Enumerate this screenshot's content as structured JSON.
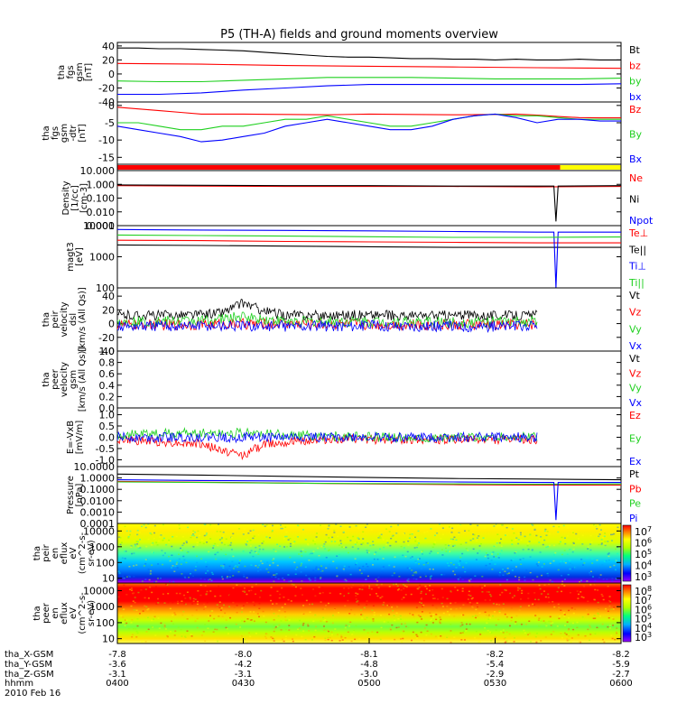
{
  "title": "P5 (TH-A) fields and ground moments overview",
  "colors": {
    "black": "#000000",
    "red": "#ff0000",
    "green": "#1fd01f",
    "blue": "#0000ff",
    "yellow": "#ffff00"
  },
  "chart_data": {
    "type": "line",
    "x_axis": {
      "ticks": [
        "0400",
        "0430",
        "0500",
        "0530",
        "0600"
      ],
      "rows": [
        {
          "label": "tha_X-GSM",
          "values": [
            "-7.8",
            "-8.0",
            "-8.1",
            "-8.2",
            "-8.2"
          ]
        },
        {
          "label": "tha_Y-GSM",
          "values": [
            "-3.6",
            "-4.2",
            "-4.8",
            "-5.4",
            "-5.9"
          ]
        },
        {
          "label": "tha_Z-GSM",
          "values": [
            "-3.1",
            "-3.1",
            "-3.0",
            "-2.9",
            "-2.7"
          ]
        },
        {
          "label": "hhmm",
          "values": []
        }
      ],
      "date": "2010 Feb 16"
    },
    "panels": [
      {
        "id": "fgs-gsm",
        "ylabel": [
          "tha",
          "fgs",
          "gsm",
          "[nT]"
        ],
        "yticks": [
          "40",
          "20",
          "0",
          "-20",
          "-40"
        ],
        "scale": "linear",
        "ylim": [
          -40,
          45
        ],
        "series": [
          {
            "name": "Bt",
            "color": "black",
            "x": [
              0,
              5,
              10,
              15,
              20,
              25,
              30,
              35,
              40,
              45,
              50,
              55,
              60,
              65,
              70,
              75,
              80,
              85,
              90,
              95,
              100,
              105,
              110,
              115,
              120
            ],
            "y": [
              37,
              37,
              36,
              36,
              35,
              34,
              33,
              31,
              29,
              27,
              25,
              24,
              24,
              23,
              22,
              22,
              21,
              21,
              20,
              21,
              20,
              20,
              21,
              20,
              20
            ]
          },
          {
            "name": "bz",
            "color": "red",
            "x": [
              0,
              20,
              40,
              60,
              80,
              100,
              120
            ],
            "y": [
              15,
              14,
              12,
              11,
              10,
              9,
              8
            ]
          },
          {
            "name": "by",
            "color": "green",
            "x": [
              0,
              10,
              20,
              30,
              40,
              50,
              60,
              70,
              80,
              90,
              100,
              110,
              120
            ],
            "y": [
              -10,
              -11,
              -11,
              -9,
              -7,
              -5,
              -5,
              -5,
              -6,
              -7,
              -7,
              -7,
              -6
            ]
          },
          {
            "name": "bx",
            "color": "blue",
            "x": [
              0,
              10,
              20,
              30,
              40,
              50,
              60,
              70,
              80,
              90,
              100,
              110,
              120
            ],
            "y": [
              -29,
              -29,
              -27,
              -23,
              -20,
              -17,
              -15,
              -15,
              -15,
              -15,
              -15,
              -15,
              -14
            ]
          }
        ]
      },
      {
        "id": "fgs-gsm-detrended",
        "ylabel": [
          "tha",
          "fgs",
          "gsm",
          "-dtr",
          "[nT]"
        ],
        "yticks": [
          "0",
          "-5",
          "-10",
          "-15"
        ],
        "scale": "linear",
        "ylim": [
          -17,
          1
        ],
        "series": [
          {
            "name": "Bz",
            "color": "red",
            "x": [
              0,
              5,
              10,
              15,
              20,
              25,
              30,
              40,
              50,
              60,
              70,
              80,
              90,
              95,
              100,
              105,
              110,
              115,
              120
            ],
            "y": [
              -0.5,
              -1,
              -1.5,
              -2,
              -2.5,
              -2.5,
              -2.5,
              -2.6,
              -2.7,
              -2.5,
              -2.6,
              -2.7,
              -2.6,
              -2.5,
              -2.8,
              -3.2,
              -3.5,
              -3.6,
              -3.6
            ]
          },
          {
            "name": "By",
            "color": "green",
            "x": [
              0,
              5,
              10,
              15,
              20,
              25,
              30,
              35,
              40,
              45,
              50,
              55,
              60,
              65,
              70,
              75,
              80,
              85,
              90,
              95,
              100,
              105,
              110,
              115,
              120
            ],
            "y": [
              -5,
              -5,
              -6,
              -7,
              -7,
              -6,
              -6,
              -5,
              -4,
              -4,
              -3,
              -4,
              -5,
              -6,
              -6,
              -5,
              -4,
              -3,
              -2.5,
              -3,
              -3,
              -3.5,
              -4,
              -4,
              -4
            ]
          },
          {
            "name": "Bx",
            "color": "blue",
            "x": [
              0,
              5,
              10,
              15,
              20,
              25,
              30,
              35,
              40,
              45,
              50,
              55,
              60,
              65,
              70,
              75,
              80,
              85,
              90,
              95,
              100,
              105,
              110,
              115,
              120
            ],
            "y": [
              -6,
              -7,
              -8,
              -9,
              -10.5,
              -10,
              -9,
              -8,
              -6,
              -5,
              -4,
              -5,
              -6,
              -7,
              -7,
              -6,
              -4,
              -3,
              -2.5,
              -3.5,
              -5,
              -4,
              -4,
              -4.5,
              -4.5
            ]
          }
        ]
      },
      {
        "id": "mode-bar",
        "type": "bar-strip",
        "segments": [
          {
            "x0": 0,
            "x1": 105.5,
            "color": "red"
          },
          {
            "x0": 105.5,
            "x1": 120,
            "color": "yellow"
          }
        ]
      },
      {
        "id": "density",
        "ylabel": [
          "Density",
          "[1/cc]",
          "[cm-3]"
        ],
        "yticks": [
          "10.000",
          "1.000",
          "0.100",
          "0.010",
          "0.001"
        ],
        "scale": "log",
        "ylim": [
          0.001,
          10
        ],
        "series": [
          {
            "name": "Ne",
            "color": "red",
            "x": [
              0,
              20,
              40,
              60,
              80,
              100,
              120
            ],
            "y": [
              0.8,
              0.75,
              0.7,
              0.7,
              0.7,
              0.65,
              0.7
            ]
          },
          {
            "name": "Ni",
            "color": "black",
            "x": [
              0,
              20,
              40,
              60,
              80,
              100,
              104,
              104.5,
              105,
              120
            ],
            "y": [
              0.9,
              0.85,
              0.8,
              0.8,
              0.75,
              0.75,
              0.75,
              0.002,
              0.75,
              0.8
            ]
          },
          {
            "name": "Npot",
            "color": "blue",
            "x": [],
            "y": []
          }
        ]
      },
      {
        "id": "temperature",
        "ylabel": [
          "magt3",
          "[eV]"
        ],
        "yticks": [
          "10000",
          "1000",
          "100"
        ],
        "scale": "log",
        "ylim": [
          100,
          10000
        ],
        "series": [
          {
            "name": "Te⊥",
            "color": "red",
            "x": [
              0,
              20,
              40,
              60,
              80,
              100,
              120
            ],
            "y": [
              3400,
              3300,
              3100,
              3000,
              2900,
              2800,
              2800
            ]
          },
          {
            "name": "Te||",
            "color": "black",
            "x": [
              0,
              20,
              40,
              60,
              80,
              100,
              120
            ],
            "y": [
              2400,
              2300,
              2200,
              2100,
              2000,
              2000,
              2000
            ]
          },
          {
            "name": "Ti⊥",
            "color": "blue",
            "x": [
              0,
              20,
              40,
              60,
              80,
              100,
              104,
              104.5,
              105,
              120
            ],
            "y": [
              7500,
              7200,
              7000,
              6800,
              6500,
              6200,
              6200,
              100,
              6200,
              6200
            ]
          },
          {
            "name": "Ti||",
            "color": "green",
            "x": [
              0,
              20,
              40,
              60,
              80,
              100,
              120
            ],
            "y": [
              5000,
              4800,
              4600,
              4400,
              4200,
              4200,
              4300
            ]
          }
        ]
      },
      {
        "id": "peir-velocity",
        "ylabel": [
          "tha",
          "peir",
          "velocity",
          "dsl",
          "[km/s (All Qs)]"
        ],
        "yticks": [
          "40",
          "20",
          "0",
          "-20",
          "-40"
        ],
        "scale": "linear",
        "ylim": [
          -40,
          52
        ],
        "series": [
          {
            "name": "Vt",
            "color": "black",
            "x": [
              0,
              10,
              20,
              25,
              30,
              35,
              40,
              50,
              60,
              70,
              80,
              90,
              100
            ],
            "y": [
              12,
              12,
              13,
              16,
              30,
              18,
              12,
              12,
              13,
              11,
              12,
              12,
              12
            ]
          },
          {
            "name": "Vz",
            "color": "red",
            "x": [
              0,
              20,
              40,
              60,
              80,
              100
            ],
            "y": [
              -2,
              -1,
              0,
              -1,
              -2,
              -1
            ]
          },
          {
            "name": "Vy",
            "color": "green",
            "x": [
              0,
              20,
              30,
              40,
              60,
              80,
              100
            ],
            "y": [
              3,
              4,
              10,
              3,
              3,
              2,
              3
            ]
          },
          {
            "name": "Vx",
            "color": "blue",
            "x": [
              0,
              20,
              40,
              60,
              80,
              100
            ],
            "y": [
              -4,
              -3,
              -4,
              -3,
              -4,
              -4
            ]
          }
        ]
      },
      {
        "id": "peer-velocity",
        "ylabel": [
          "tha",
          "peer",
          "velocity",
          "gsm",
          "[km/s (All Qs)]"
        ],
        "yticks": [
          "1.0",
          "0.8",
          "0.6",
          "0.4",
          "0.2",
          "0.0"
        ],
        "scale": "linear",
        "ylim": [
          0,
          1
        ],
        "series": [
          {
            "name": "Vt",
            "color": "black",
            "x": [],
            "y": []
          },
          {
            "name": "Vz",
            "color": "red",
            "x": [],
            "y": []
          },
          {
            "name": "Vy",
            "color": "green",
            "x": [],
            "y": []
          },
          {
            "name": "Vx",
            "color": "blue",
            "x": [],
            "y": []
          }
        ]
      },
      {
        "id": "efield",
        "ylabel": [
          "E=-VxB",
          "[mV/m]"
        ],
        "yticks": [
          "1.0",
          "0.5",
          "0.0",
          "-0.5",
          "-1.0"
        ],
        "scale": "linear",
        "ylim": [
          -1.3,
          1.3
        ],
        "series": [
          {
            "name": "Ez",
            "color": "red",
            "x": [
              0,
              10,
              20,
              25,
              30,
              35,
              40,
              50,
              60,
              70,
              80,
              90,
              100
            ],
            "y": [
              -0.1,
              -0.2,
              -0.3,
              -0.6,
              -0.8,
              -0.3,
              -0.2,
              -0.1,
              -0.1,
              -0.1,
              -0.1,
              -0.1,
              -0.1
            ]
          },
          {
            "name": "Ey",
            "color": "green",
            "x": [
              0,
              20,
              30,
              40,
              60,
              80,
              100
            ],
            "y": [
              0.1,
              0.2,
              0.2,
              0.1,
              0.0,
              0.0,
              0.0
            ]
          },
          {
            "name": "Ex",
            "color": "blue",
            "x": [
              0,
              20,
              40,
              60,
              80,
              100
            ],
            "y": [
              0.0,
              0.0,
              0.0,
              0.0,
              0.0,
              0.0
            ]
          }
        ]
      },
      {
        "id": "pressure",
        "ylabel": [
          "Pressure",
          "[nPa]"
        ],
        "yticks": [
          "10.0000",
          "1.0000",
          "0.1000",
          "0.0100",
          "0.0010",
          "0.0001"
        ],
        "scale": "log",
        "ylim": [
          0.0001,
          10
        ],
        "series": [
          {
            "name": "Pt",
            "color": "black",
            "x": [
              0,
              20,
              40,
              60,
              80,
              100,
              120
            ],
            "y": [
              2.2,
              1.8,
              1.4,
              1.1,
              0.9,
              0.8,
              0.7
            ]
          },
          {
            "name": "Pb",
            "color": "red",
            "x": [
              0,
              20,
              40,
              60,
              80,
              100,
              120
            ],
            "y": [
              0.5,
              0.42,
              0.36,
              0.3,
              0.26,
              0.24,
              0.24
            ]
          },
          {
            "name": "Pe",
            "color": "green",
            "x": [
              0,
              20,
              40,
              60,
              80,
              100,
              120
            ],
            "y": [
              0.45,
              0.4,
              0.35,
              0.32,
              0.3,
              0.28,
              0.3
            ]
          },
          {
            "name": "Pi",
            "color": "blue",
            "x": [
              0,
              20,
              40,
              60,
              80,
              100,
              104,
              104.5,
              105,
              120
            ],
            "y": [
              0.7,
              0.6,
              0.55,
              0.5,
              0.45,
              0.4,
              0.4,
              0.0002,
              0.4,
              0.4
            ]
          }
        ]
      },
      {
        "id": "peir-eflux",
        "type": "heatmap",
        "ylabel": [
          "tha",
          "peir",
          "en",
          "eflux",
          "eV",
          "(cm^2-s-",
          "sr-eV)"
        ],
        "yticks": [
          "10000",
          "1000",
          "100",
          "10"
        ],
        "scale": "log",
        "ylim": [
          5,
          30000
        ],
        "colorbar": [
          "10^7",
          "10^6",
          "10^5",
          "10^4",
          "10^3"
        ]
      },
      {
        "id": "peer-eflux",
        "type": "heatmap",
        "ylabel": [
          "tha",
          "peer",
          "en",
          "eflux",
          "eV",
          "(cm^2-s-",
          "sr-eV)"
        ],
        "yticks": [
          "10000",
          "1000",
          "100",
          "10"
        ],
        "scale": "log",
        "ylim": [
          5,
          30000
        ],
        "colorbar": [
          "10^8",
          "10^7",
          "10^6",
          "10^5",
          "10^4",
          "10^3"
        ]
      }
    ]
  }
}
